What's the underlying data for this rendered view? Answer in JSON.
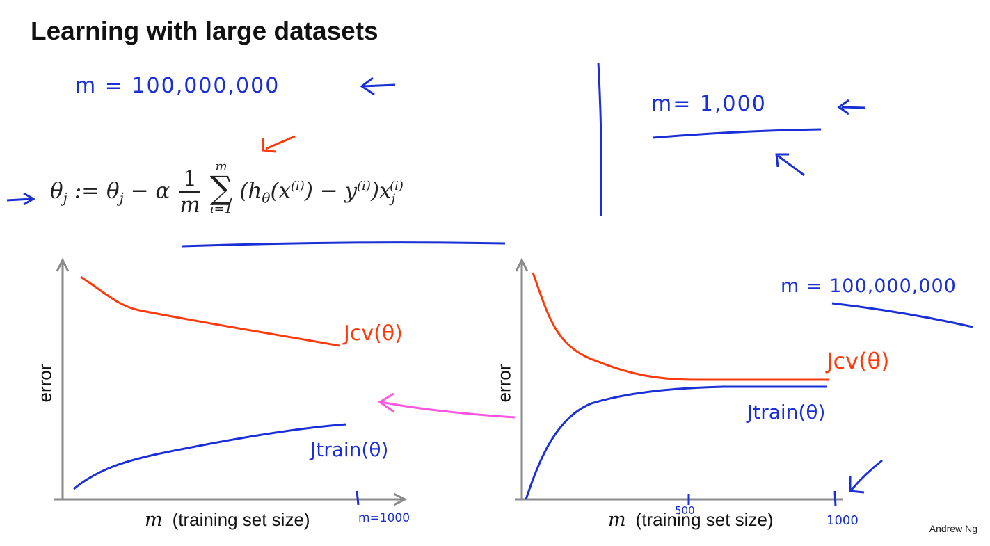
{
  "slide": {
    "title": "Learning with large datasets",
    "m_large": "m = 100,000,000",
    "m_small": "m= 1,000",
    "update_rule": "θj := θj − α (1/m) Σ_{i=1}^{m} (hθ(x^(i)) − y^(i)) xj^(i)",
    "credit": "Andrew Ng"
  },
  "left_plot": {
    "ylabel": "error",
    "xvar": "m",
    "xlabel": "(training set size)",
    "x_tick_note": "m=1000",
    "cv_label": "Jcv(θ)",
    "train_label": "Jtrain(θ)"
  },
  "right_plot": {
    "ylabel": "error",
    "xvar": "m",
    "xlabel": "(training set size)",
    "annotation": "m = 100,000,000",
    "tick_500": "500",
    "tick_1000": "1000",
    "cv_label": "Jcv(θ)",
    "train_label": "Jtrain(θ)"
  },
  "colors": {
    "blue_ink": "#1a2fd6",
    "red_ink": "#ff3a0a",
    "pink_arrow": "#ff55e0",
    "axis": "#8a8a8a"
  }
}
